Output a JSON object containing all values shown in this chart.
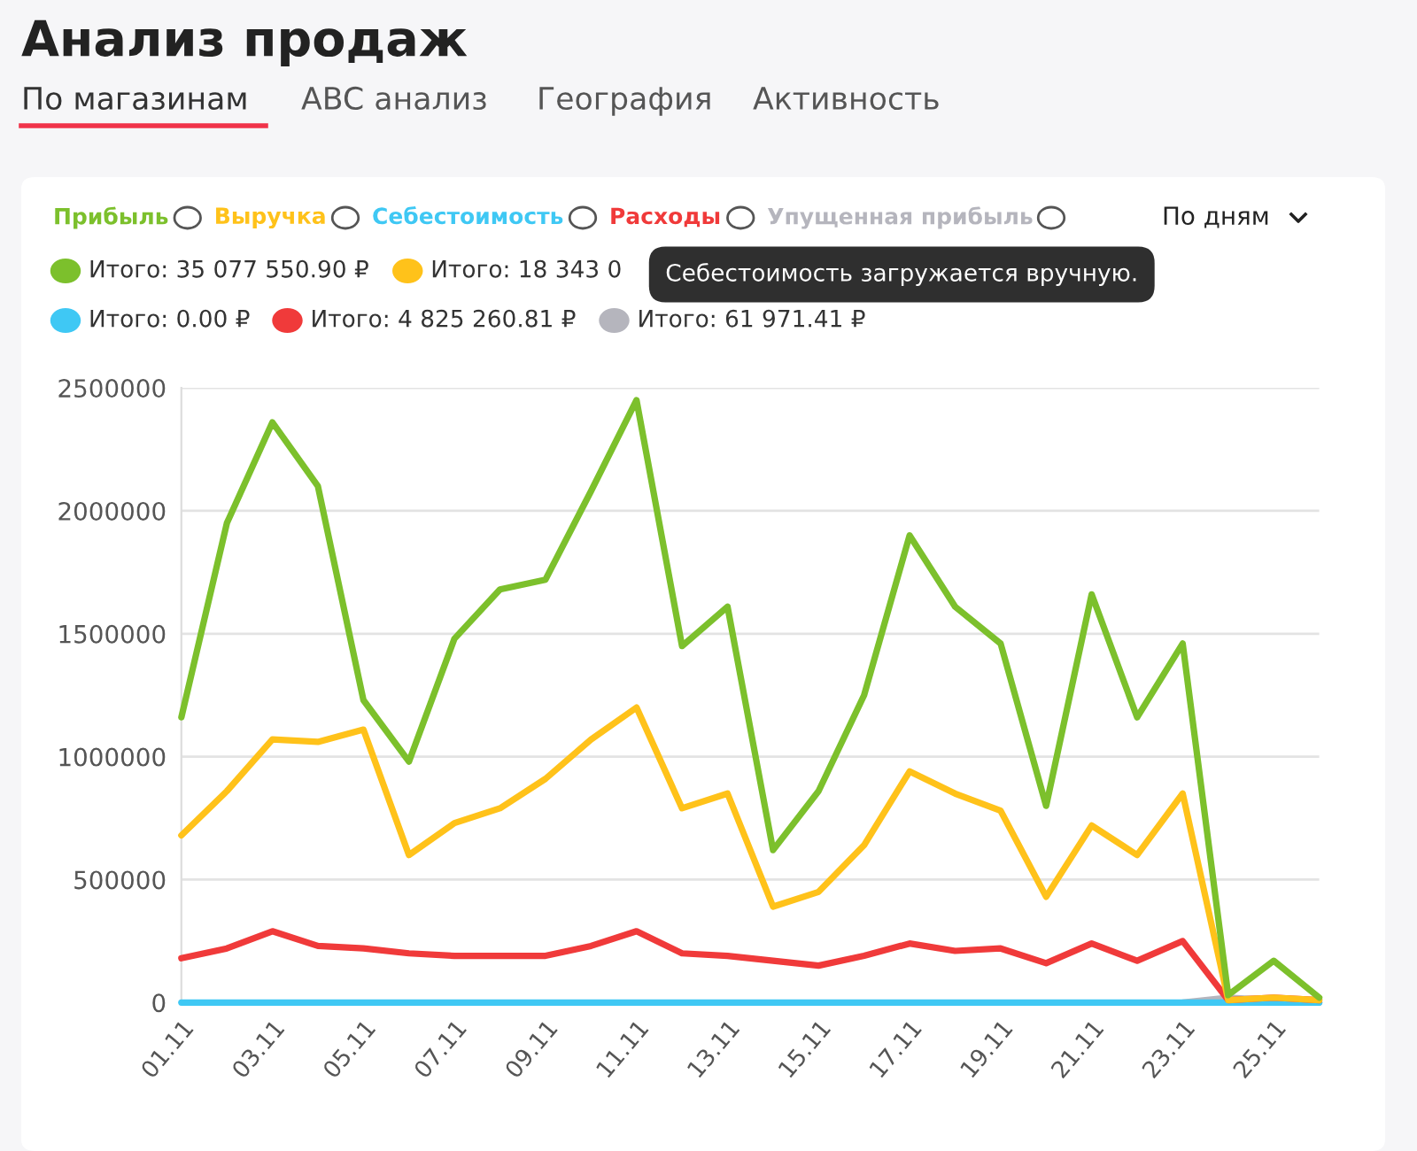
{
  "chart_data": {
    "type": "line",
    "title": "Анализ продаж",
    "categories": [
      "01.11",
      null,
      "03.11",
      null,
      "05.11",
      null,
      "07.11",
      null,
      "09.11",
      null,
      "11.11",
      null,
      "13.11",
      null,
      "15.11",
      null,
      "17.11",
      null,
      "19.11",
      null,
      "21.11",
      null,
      "23.11",
      null,
      "25.11",
      null
    ],
    "series": [
      {
        "name": "Прибыль",
        "color": "#7cc02c",
        "values": [
          1160000,
          1950000,
          2360000,
          2100000,
          1230000,
          980000,
          1480000,
          1680000,
          1720000,
          2080000,
          2450000,
          1450000,
          1610000,
          620000,
          860000,
          1250000,
          1900000,
          1610000,
          1460000,
          800000,
          1660000,
          1160000,
          1460000,
          30000,
          170000,
          20000
        ]
      },
      {
        "name": "Выручка",
        "color": "#ffc21a",
        "values": [
          680000,
          860000,
          1070000,
          1060000,
          1110000,
          600000,
          730000,
          790000,
          910000,
          1070000,
          1200000,
          790000,
          850000,
          390000,
          450000,
          640000,
          940000,
          850000,
          780000,
          430000,
          720000,
          600000,
          850000,
          10000,
          20000,
          10000
        ]
      },
      {
        "name": "Себестоимость",
        "color": "#3fc8f4",
        "values": [
          0,
          0,
          0,
          0,
          0,
          0,
          0,
          0,
          0,
          0,
          0,
          0,
          0,
          0,
          0,
          0,
          0,
          0,
          0,
          0,
          0,
          0,
          0,
          0,
          0,
          0
        ]
      },
      {
        "name": "Расходы",
        "color": "#f03a3a",
        "values": [
          180000,
          220000,
          290000,
          230000,
          220000,
          200000,
          190000,
          190000,
          190000,
          230000,
          290000,
          200000,
          190000,
          170000,
          150000,
          190000,
          240000,
          210000,
          220000,
          160000,
          240000,
          170000,
          250000,
          10000,
          20000,
          10000
        ]
      },
      {
        "name": "Упущенная прибыль",
        "color": "#b5b5bd",
        "values": [
          null,
          null,
          null,
          null,
          null,
          null,
          null,
          null,
          null,
          null,
          null,
          null,
          null,
          null,
          null,
          null,
          null,
          null,
          null,
          null,
          null,
          null,
          0,
          20000,
          10000,
          0
        ]
      }
    ],
    "ylim": [
      0,
      2500000
    ],
    "yticks": [
      0,
      500000,
      1000000,
      1500000,
      2000000,
      2500000
    ],
    "grid": "y",
    "legend": "top",
    "marker": "none",
    "line_style": "solid",
    "annotations": [
      "По магазинам",
      "ABC анализ",
      "География",
      "Активность",
      "По дням",
      "Итого: 35 077 550.90 ₽",
      "Итого: 18 343 0",
      "Итого: 0.00 ₽",
      "Итого: 4 825 260.81 ₽",
      "Итого: 61 971.41 ₽",
      "Себестоимость загружается вручную."
    ]
  }
}
